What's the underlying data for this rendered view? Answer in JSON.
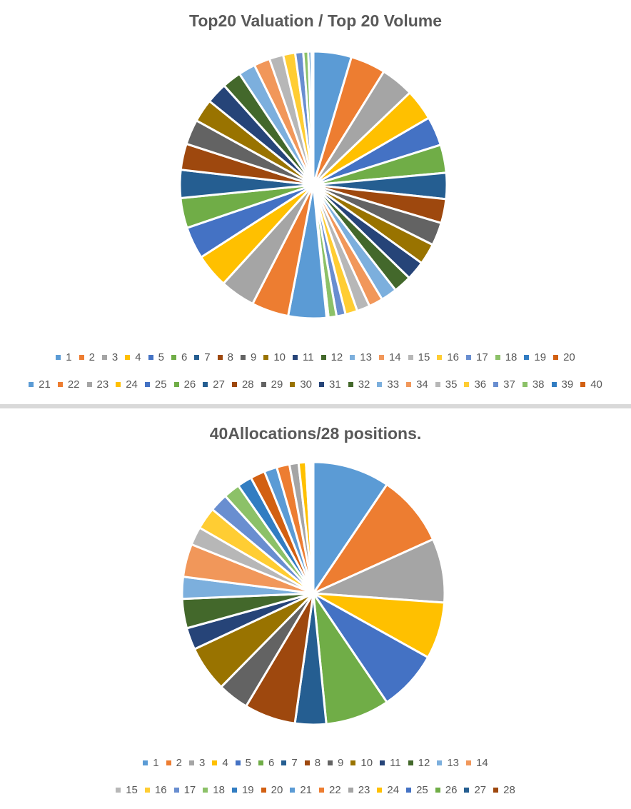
{
  "palette": [
    "#5B9BD5",
    "#ED7D31",
    "#A5A5A5",
    "#FFC000",
    "#4472C4",
    "#70AD47",
    "#255E91",
    "#9E480E",
    "#636363",
    "#997300",
    "#264478",
    "#43682B",
    "#7CAFDD",
    "#F1975A",
    "#B7B7B7",
    "#FFCD33",
    "#698ED0",
    "#8CC168",
    "#327DC2",
    "#D26012"
  ],
  "chart_data": [
    {
      "type": "pie",
      "title": "Top20 Valuation / Top 20 Volume",
      "categories": [
        "1",
        "2",
        "3",
        "4",
        "5",
        "6",
        "7",
        "8",
        "9",
        "10",
        "11",
        "12",
        "13",
        "14",
        "15",
        "16",
        "17",
        "18",
        "19",
        "20",
        "21",
        "22",
        "23",
        "24",
        "25",
        "26",
        "27",
        "28",
        "29",
        "30",
        "31",
        "32",
        "33",
        "34",
        "35",
        "36",
        "37",
        "38",
        "39",
        "40"
      ],
      "values": [
        19.0,
        17.5,
        16.5,
        15.5,
        14.5,
        14.0,
        13.0,
        12.0,
        11.5,
        10.5,
        9.5,
        9.0,
        8.0,
        7.0,
        6.5,
        6.0,
        4.5,
        4.0,
        0.5,
        0.5,
        19.0,
        18.5,
        17.5,
        17.0,
        16.0,
        15.0,
        14.0,
        13.0,
        12.5,
        11.5,
        10.5,
        9.5,
        8.5,
        8.0,
        7.0,
        6.0,
        4.0,
        2.5,
        1.5,
        1.0
      ],
      "legend_position": "bottom"
    },
    {
      "type": "pie",
      "title": "40Allocations/28 positions.",
      "categories": [
        "1",
        "2",
        "3",
        "4",
        "5",
        "6",
        "7",
        "8",
        "9",
        "10",
        "11",
        "12",
        "13",
        "14",
        "15",
        "16",
        "17",
        "18",
        "19",
        "20",
        "21",
        "22",
        "23",
        "24",
        "25",
        "26",
        "27",
        "28"
      ],
      "values": [
        42,
        39,
        35,
        31,
        33,
        35,
        17,
        28,
        17,
        25,
        12,
        16,
        12,
        18,
        10,
        12,
        10,
        9,
        8,
        8,
        7,
        7,
        5,
        4,
        1,
        1,
        1,
        1
      ],
      "legend_position": "bottom"
    }
  ]
}
